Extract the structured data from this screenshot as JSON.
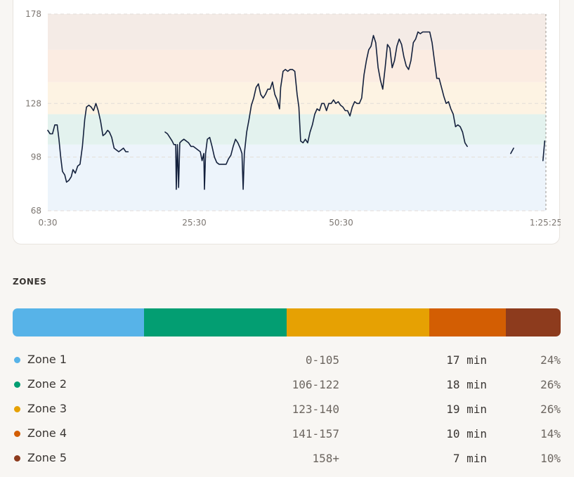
{
  "chart_data": {
    "type": "line",
    "x_ticks": [
      "0:30",
      "25:30",
      "50:30",
      "1:25:25"
    ],
    "y_ticks": [
      "68",
      "98",
      "128",
      "178"
    ],
    "y_min": 68,
    "y_max": 178,
    "zone_bands": [
      {
        "from": 68,
        "to": 105,
        "color": "#edf4fb"
      },
      {
        "from": 105,
        "to": 122,
        "color": "#e3f2ee"
      },
      {
        "from": 122,
        "to": 140,
        "color": "#fdf3e3"
      },
      {
        "from": 140,
        "to": 158,
        "color": "#fbece2"
      },
      {
        "from": 158,
        "to": 178,
        "color": "#f4ebe6"
      }
    ],
    "series": [
      {
        "color": "#14213d",
        "segments": [
          [
            [
              0.5,
              113
            ],
            [
              0.9,
              111
            ],
            [
              1.3,
              111
            ],
            [
              1.7,
              116
            ],
            [
              2.1,
              116
            ],
            [
              2.4,
              108
            ],
            [
              2.7,
              98
            ],
            [
              3.0,
              90
            ],
            [
              3.4,
              88
            ],
            [
              3.7,
              84
            ],
            [
              4.1,
              85
            ],
            [
              4.5,
              87
            ],
            [
              4.8,
              91
            ],
            [
              5.2,
              89
            ],
            [
              5.6,
              93
            ],
            [
              6.0,
              94
            ],
            [
              6.4,
              104
            ],
            [
              6.8,
              119
            ],
            [
              7.1,
              126
            ],
            [
              7.5,
              127
            ],
            [
              7.9,
              126
            ],
            [
              8.3,
              124
            ],
            [
              8.7,
              128
            ],
            [
              9.1,
              124
            ],
            [
              9.5,
              118
            ],
            [
              9.9,
              110
            ],
            [
              10.3,
              111
            ],
            [
              10.7,
              113
            ],
            [
              11.0,
              112
            ],
            [
              11.4,
              109
            ],
            [
              11.8,
              103
            ],
            [
              12.2,
              102
            ],
            [
              12.6,
              101
            ],
            [
              13.0,
              102
            ],
            [
              13.4,
              103
            ],
            [
              13.8,
              101
            ],
            [
              14.2,
              101
            ]
          ],
          [
            [
              20.5,
              112
            ],
            [
              20.9,
              111
            ],
            [
              21.3,
              109
            ],
            [
              21.7,
              107
            ],
            [
              22.0,
              105
            ],
            [
              22.3,
              105
            ],
            [
              22.4,
              80
            ],
            [
              22.6,
              105
            ],
            [
              22.8,
              81
            ],
            [
              23.0,
              106
            ],
            [
              23.3,
              107
            ],
            [
              23.7,
              108
            ],
            [
              24.1,
              107
            ],
            [
              24.5,
              106
            ],
            [
              24.9,
              104
            ],
            [
              25.3,
              104
            ],
            [
              25.7,
              103
            ],
            [
              26.1,
              102
            ],
            [
              26.5,
              101
            ],
            [
              26.8,
              96
            ],
            [
              27.1,
              100
            ],
            [
              27.2,
              80
            ],
            [
              27.4,
              100
            ],
            [
              27.7,
              108
            ],
            [
              28.1,
              109
            ],
            [
              28.5,
              104
            ],
            [
              28.9,
              98
            ],
            [
              29.3,
              95
            ],
            [
              29.7,
              94
            ],
            [
              30.1,
              94
            ],
            [
              30.5,
              94
            ],
            [
              30.9,
              94
            ],
            [
              31.3,
              97
            ],
            [
              31.7,
              99
            ],
            [
              32.1,
              104
            ],
            [
              32.5,
              108
            ],
            [
              32.9,
              106
            ],
            [
              33.3,
              103
            ],
            [
              33.6,
              100
            ],
            [
              33.8,
              80
            ],
            [
              34.0,
              100
            ],
            [
              34.4,
              112
            ],
            [
              34.8,
              119
            ],
            [
              35.2,
              127
            ],
            [
              35.6,
              131
            ],
            [
              36.0,
              137
            ],
            [
              36.4,
              139
            ],
            [
              36.8,
              133
            ],
            [
              37.2,
              131
            ],
            [
              37.6,
              133
            ],
            [
              38.0,
              136
            ],
            [
              38.4,
              136
            ],
            [
              38.8,
              140
            ],
            [
              39.2,
              133
            ],
            [
              39.6,
              130
            ],
            [
              40.0,
              125
            ],
            [
              40.2,
              137
            ],
            [
              40.6,
              146
            ],
            [
              41.0,
              147
            ],
            [
              41.4,
              146
            ],
            [
              41.8,
              147
            ],
            [
              42.2,
              147
            ],
            [
              42.6,
              146
            ],
            [
              43.0,
              133
            ],
            [
              43.3,
              126
            ],
            [
              43.6,
              107
            ],
            [
              44.0,
              106
            ],
            [
              44.4,
              108
            ],
            [
              44.8,
              106
            ],
            [
              45.2,
              112
            ],
            [
              45.6,
              116
            ],
            [
              46.0,
              122
            ],
            [
              46.4,
              125
            ],
            [
              46.8,
              124
            ],
            [
              47.2,
              128
            ],
            [
              47.6,
              128
            ],
            [
              48.0,
              124
            ],
            [
              48.4,
              128
            ],
            [
              48.8,
              128
            ],
            [
              49.2,
              130
            ],
            [
              49.6,
              128
            ],
            [
              50.0,
              129
            ],
            [
              50.4,
              127
            ],
            [
              50.8,
              126
            ],
            [
              51.2,
              124
            ],
            [
              51.6,
              124
            ],
            [
              52.0,
              121
            ],
            [
              52.4,
              126
            ],
            [
              52.8,
              129
            ],
            [
              53.2,
              128
            ],
            [
              53.6,
              128
            ],
            [
              54.0,
              131
            ],
            [
              54.4,
              144
            ],
            [
              54.8,
              152
            ],
            [
              55.2,
              158
            ],
            [
              55.6,
              160
            ],
            [
              56.0,
              166
            ],
            [
              56.4,
              162
            ],
            [
              56.8,
              148
            ],
            [
              57.2,
              141
            ],
            [
              57.6,
              136
            ],
            [
              58.0,
              148
            ],
            [
              58.4,
              161
            ],
            [
              58.8,
              159
            ],
            [
              59.2,
              148
            ],
            [
              59.6,
              152
            ],
            [
              60.0,
              160
            ],
            [
              60.4,
              164
            ],
            [
              60.8,
              161
            ],
            [
              61.2,
              154
            ],
            [
              61.6,
              149
            ],
            [
              62.0,
              147
            ],
            [
              62.4,
              152
            ],
            [
              62.8,
              162
            ],
            [
              63.2,
              164
            ],
            [
              63.6,
              168
            ],
            [
              64.0,
              167
            ],
            [
              64.4,
              168
            ],
            [
              64.8,
              168
            ],
            [
              65.2,
              168
            ],
            [
              65.6,
              168
            ],
            [
              66.0,
              162
            ],
            [
              66.4,
              152
            ],
            [
              66.8,
              142
            ],
            [
              67.2,
              142
            ],
            [
              67.6,
              137
            ],
            [
              68.0,
              132
            ],
            [
              68.4,
              128
            ],
            [
              68.8,
              129
            ],
            [
              69.2,
              125
            ],
            [
              69.6,
              122
            ],
            [
              70.0,
              115
            ],
            [
              70.4,
              116
            ],
            [
              70.8,
              115
            ],
            [
              71.2,
              112
            ],
            [
              71.6,
              106
            ],
            [
              72.0,
              104
            ]
          ]
        ],
        "tail_segments": [
          [
            [
              79.4,
              100
            ],
            [
              79.9,
              103
            ]
          ],
          [
            [
              84.9,
              96
            ],
            [
              85.2,
              107
            ]
          ]
        ]
      }
    ]
  },
  "zones": {
    "title": "ZONES",
    "items": [
      {
        "name": "Zone 1",
        "range": "0-105",
        "time": "17 min",
        "pct": "24%",
        "share": 24,
        "color": "#57b3e8"
      },
      {
        "name": "Zone 2",
        "range": "106-122",
        "time": "18 min",
        "pct": "26%",
        "share": 26,
        "color": "#039e72"
      },
      {
        "name": "Zone 3",
        "range": "123-140",
        "time": "19 min",
        "pct": "26%",
        "share": 26,
        "color": "#e6a103"
      },
      {
        "name": "Zone 4",
        "range": "141-157",
        "time": "10 min",
        "pct": "14%",
        "share": 14,
        "color": "#d35e03"
      },
      {
        "name": "Zone 5",
        "range": "158+",
        "time": "7 min",
        "pct": "10%",
        "share": 10,
        "color": "#8d3b1d"
      }
    ]
  }
}
